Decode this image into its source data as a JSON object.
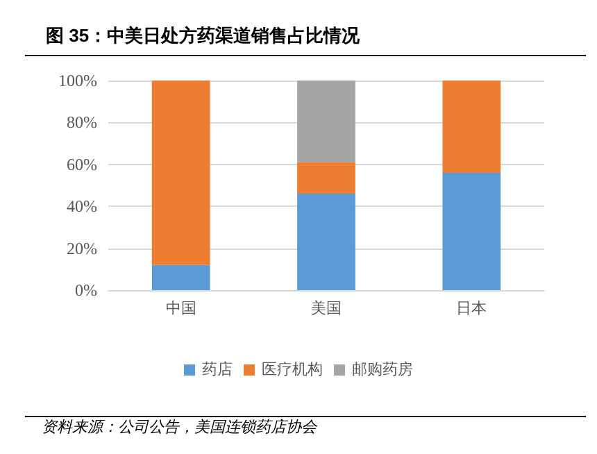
{
  "chart_data": {
    "type": "bar",
    "title": "图 35：中美日处方药渠道销售占比情况",
    "categories": [
      "中国",
      "美国",
      "日本"
    ],
    "stacked": true,
    "series": [
      {
        "name": "药店",
        "color": "#5b9bd5",
        "values": [
          12,
          46,
          56
        ]
      },
      {
        "name": "医疗机构",
        "color": "#ed7d31",
        "values": [
          88,
          15,
          44
        ]
      },
      {
        "name": "邮购药房",
        "color": "#a5a5a5",
        "values": [
          0,
          39,
          0
        ]
      }
    ],
    "ylim": [
      0,
      100
    ],
    "yticks": [
      {
        "value": 0,
        "label": "0%"
      },
      {
        "value": 20,
        "label": "20%"
      },
      {
        "value": 40,
        "label": "40%"
      },
      {
        "value": 60,
        "label": "60%"
      },
      {
        "value": 80,
        "label": "80%"
      },
      {
        "value": 100,
        "label": "100%"
      }
    ],
    "grid": "y",
    "legend": "bottom",
    "annotations": [
      "资料来源：公司公告，美国连锁药店协会"
    ]
  }
}
